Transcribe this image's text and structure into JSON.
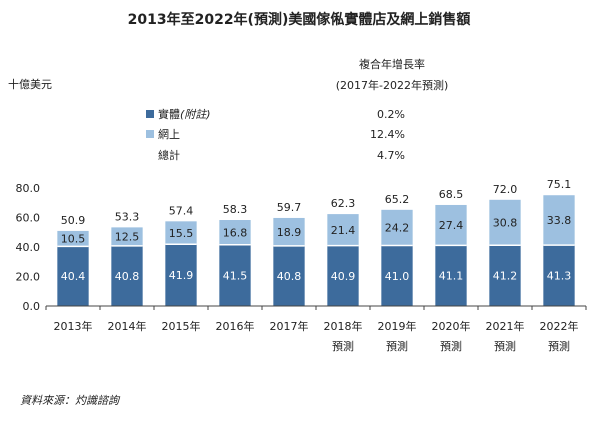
{
  "chart_data": {
    "type": "bar",
    "stacked": true,
    "title": "2013年至2022年(預測)美國傢俬實體店及網上銷售額",
    "ylabel": "十億美元",
    "ylim": [
      0,
      80
    ],
    "yticks": [
      "0.0",
      "20.0",
      "40.0",
      "60.0",
      "80.0"
    ],
    "categories": [
      {
        "line1": "2013年",
        "line2": ""
      },
      {
        "line1": "2014年",
        "line2": ""
      },
      {
        "line1": "2015年",
        "line2": ""
      },
      {
        "line1": "2016年",
        "line2": ""
      },
      {
        "line1": "2017年",
        "line2": ""
      },
      {
        "line1": "2018年",
        "line2": "預測"
      },
      {
        "line1": "2019年",
        "line2": "預測"
      },
      {
        "line1": "2020年",
        "line2": "預測"
      },
      {
        "line1": "2021年",
        "line2": "預測"
      },
      {
        "line1": "2022年",
        "line2": "預測"
      }
    ],
    "series": [
      {
        "name": "實體",
        "note": "(附註)",
        "color": "#3d6b9c",
        "values": [
          40.4,
          40.8,
          41.9,
          41.5,
          40.8,
          40.9,
          41.0,
          41.1,
          41.2,
          41.3
        ],
        "labels": [
          "40.4",
          "40.8",
          "41.9",
          "41.5",
          "40.8",
          "40.9",
          "41.0",
          "41.1",
          "41.2",
          "41.3"
        ]
      },
      {
        "name": "網上",
        "note": "",
        "color": "#9dc0e0",
        "values": [
          10.5,
          12.5,
          15.5,
          16.8,
          18.9,
          21.4,
          24.2,
          27.4,
          30.8,
          33.8
        ],
        "labels": [
          "10.5",
          "12.5",
          "15.5",
          "16.8",
          "18.9",
          "21.4",
          "24.2",
          "27.4",
          "30.8",
          "33.8"
        ]
      }
    ],
    "totals": [
      50.9,
      53.3,
      57.4,
      58.3,
      59.7,
      62.3,
      65.2,
      68.5,
      72.0,
      75.1
    ],
    "total_labels": [
      "50.9",
      "53.3",
      "57.4",
      "58.3",
      "59.7",
      "62.3",
      "65.2",
      "68.5",
      "72.0",
      "75.1"
    ],
    "legend": {
      "placement": "top-left",
      "cagr_header_1": "複合年增長率",
      "cagr_header_2": "(2017年-2022年預測)",
      "rows": [
        {
          "label": "實體",
          "note": "(附註)",
          "color": "#3d6b9c",
          "cagr": "0.2%"
        },
        {
          "label": "網上",
          "note": "",
          "color": "#9dc0e0",
          "cagr": "12.4%"
        },
        {
          "label": "總計",
          "note": "",
          "color": "",
          "cagr": "4.7%"
        }
      ]
    },
    "source": "資料來源：灼識諮詢",
    "grid": false
  }
}
